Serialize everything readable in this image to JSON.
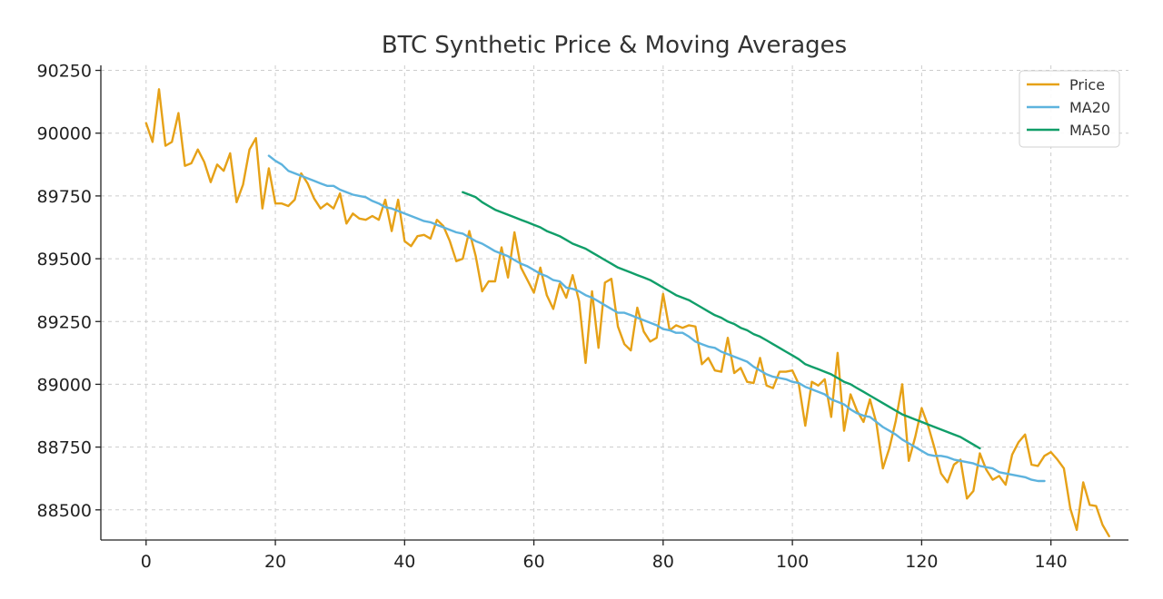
{
  "chart_data": {
    "type": "line",
    "title": "BTC Synthetic Price & Moving Averages",
    "xlabel": "",
    "ylabel": "",
    "xlim": [
      -7,
      152
    ],
    "ylim": [
      88380,
      90270
    ],
    "x_ticks": [
      0,
      20,
      40,
      60,
      80,
      100,
      120,
      140
    ],
    "y_ticks": [
      88500,
      88750,
      89000,
      89250,
      89500,
      89750,
      90000,
      90250
    ],
    "grid": true,
    "legend_position": "top-right",
    "series": [
      {
        "name": "Price",
        "color": "#E6A117",
        "x_start": 0,
        "values": [
          90040,
          89965,
          90175,
          89950,
          89965,
          90080,
          89870,
          89880,
          89935,
          89885,
          89805,
          89875,
          89850,
          89920,
          89725,
          89795,
          89935,
          89980,
          89700,
          89860,
          89720,
          89720,
          89710,
          89735,
          89840,
          89800,
          89740,
          89700,
          89720,
          89700,
          89760,
          89640,
          89680,
          89660,
          89655,
          89670,
          89655,
          89735,
          89610,
          89735,
          89570,
          89550,
          89590,
          89595,
          89580,
          89655,
          89630,
          89570,
          89490,
          89500,
          89610,
          89510,
          89370,
          89410,
          89410,
          89545,
          89425,
          89605,
          89465,
          89415,
          89365,
          89465,
          89355,
          89300,
          89400,
          89345,
          89435,
          89330,
          89085,
          89370,
          89145,
          89405,
          89420,
          89230,
          89160,
          89135,
          89305,
          89210,
          89170,
          89185,
          89360,
          89215,
          89235,
          89225,
          89235,
          89230,
          89080,
          89105,
          89055,
          89050,
          89185,
          89045,
          89065,
          89010,
          89005,
          89105,
          88995,
          88985,
          89050,
          89050,
          89055,
          89000,
          88835,
          89010,
          88995,
          89020,
          88870,
          89125,
          88815,
          88960,
          88895,
          88850,
          88940,
          88845,
          88665,
          88745,
          88855,
          89000,
          88695,
          88790,
          88905,
          88835,
          88745,
          88645,
          88610,
          88680,
          88700,
          88545,
          88575,
          88725,
          88660,
          88620,
          88635,
          88600,
          88720,
          88770,
          88800,
          88680,
          88675,
          88715,
          88730,
          88700,
          88665,
          88505,
          88420,
          88610,
          88520,
          88515,
          88440,
          88395
        ]
      },
      {
        "name": "MA20",
        "color": "#5DB3DE",
        "x_start": 19,
        "values": [
          89910,
          89890,
          89875,
          89850,
          89840,
          89830,
          89820,
          89810,
          89800,
          89790,
          89790,
          89775,
          89765,
          89755,
          89750,
          89745,
          89730,
          89720,
          89705,
          89700,
          89690,
          89680,
          89670,
          89660,
          89650,
          89645,
          89635,
          89625,
          89615,
          89605,
          89600,
          89585,
          89570,
          89560,
          89545,
          89530,
          89520,
          89510,
          89495,
          89480,
          89470,
          89455,
          89440,
          89430,
          89415,
          89410,
          89385,
          89380,
          89370,
          89355,
          89345,
          89330,
          89315,
          89300,
          89285,
          89285,
          89275,
          89265,
          89255,
          89245,
          89235,
          89220,
          89215,
          89205,
          89205,
          89190,
          89170,
          89160,
          89150,
          89145,
          89130,
          89120,
          89110,
          89100,
          89090,
          89070,
          89055,
          89040,
          89030,
          89025,
          89020,
          89010,
          89005,
          88990,
          88980,
          88970,
          88960,
          88940,
          88930,
          88920,
          88900,
          88885,
          88875,
          88870,
          88850,
          88830,
          88815,
          88800,
          88780,
          88765,
          88750,
          88735,
          88720,
          88715,
          88715,
          88710,
          88700,
          88695,
          88690,
          88685,
          88675,
          88670,
          88665,
          88650,
          88645,
          88640,
          88635,
          88630,
          88620,
          88615,
          88615
        ]
      },
      {
        "name": "MA50",
        "color": "#109E69",
        "x_start": 49,
        "values": [
          89765,
          89755,
          89745,
          89725,
          89710,
          89695,
          89685,
          89675,
          89665,
          89655,
          89645,
          89635,
          89625,
          89610,
          89600,
          89590,
          89575,
          89560,
          89550,
          89540,
          89525,
          89510,
          89495,
          89480,
          89465,
          89455,
          89445,
          89435,
          89425,
          89415,
          89400,
          89385,
          89370,
          89355,
          89345,
          89335,
          89320,
          89305,
          89290,
          89275,
          89265,
          89250,
          89240,
          89225,
          89215,
          89200,
          89190,
          89175,
          89160,
          89145,
          89130,
          89115,
          89100,
          89080,
          89070,
          89060,
          89050,
          89040,
          89025,
          89010,
          89000,
          88985,
          88970,
          88955,
          88940,
          88925,
          88910,
          88895,
          88880,
          88870,
          88860,
          88850,
          88840,
          88830,
          88820,
          88810,
          88800,
          88790,
          88775,
          88760,
          88745
        ]
      }
    ]
  }
}
